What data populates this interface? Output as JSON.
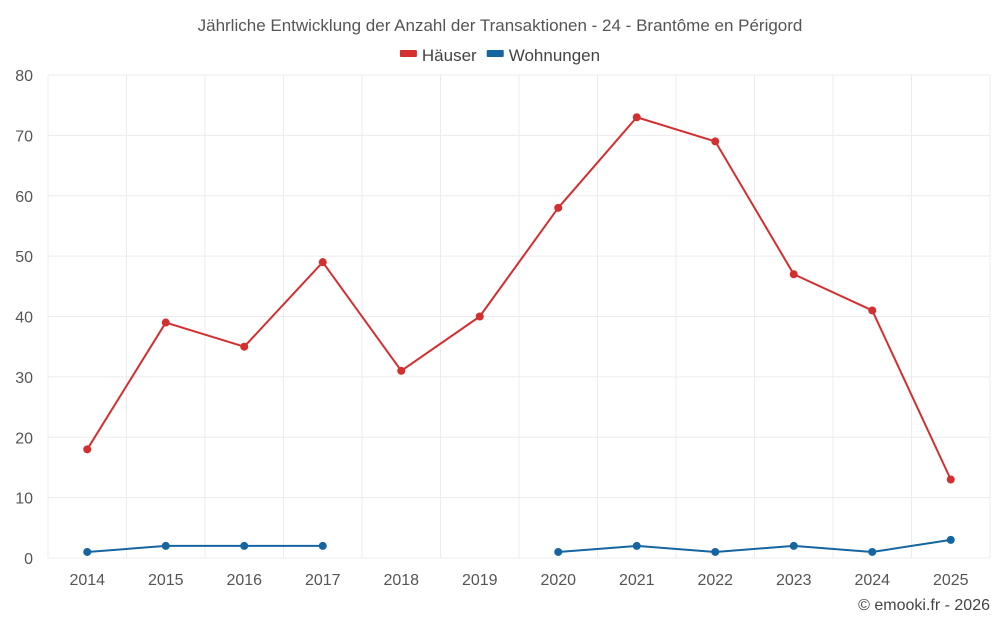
{
  "chart_data": {
    "type": "line",
    "title": "Jährliche Entwicklung der Anzahl der Transaktionen - 24 - Brantôme en Périgord",
    "categories": [
      "2014",
      "2015",
      "2016",
      "2017",
      "2018",
      "2019",
      "2020",
      "2021",
      "2022",
      "2023",
      "2024",
      "2025"
    ],
    "series": [
      {
        "name": "Häuser",
        "color": "#d32f2f",
        "values": [
          18,
          39,
          35,
          49,
          31,
          40,
          58,
          73,
          69,
          47,
          41,
          13
        ]
      },
      {
        "name": "Wohnungen",
        "color": "#1565a0",
        "values": [
          1,
          2,
          2,
          2,
          null,
          null,
          1,
          2,
          1,
          2,
          1,
          3
        ]
      }
    ],
    "ylim": [
      0,
      80
    ],
    "yticks": [
      0,
      10,
      20,
      30,
      40,
      50,
      60,
      70,
      80
    ],
    "xlabel": "",
    "ylabel": "",
    "legend": "top-center",
    "grid": true
  },
  "credit": "© emooki.fr - 2026"
}
